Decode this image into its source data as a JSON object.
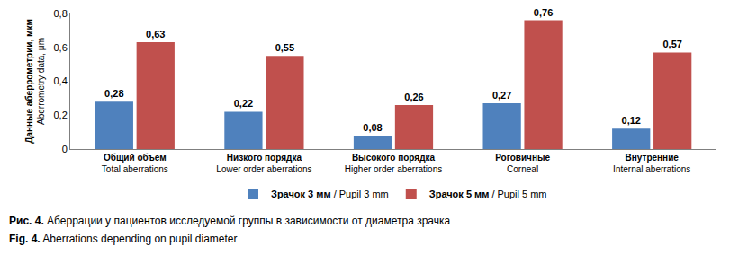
{
  "chart_data": {
    "type": "bar",
    "title": "Рис. 4. Аберрации у пациентов исследуемой группы в зависимости от диаметра зрачка",
    "subtitle": "Fig. 4. Aberrations depending on pupil diameter",
    "y_label": "Данные аберрометрии, мкм\nAberrometry data, μm",
    "categories": [
      "Общий объем\nTotal aberrations",
      "Низкого порядка\nLower order aberrations",
      "Высокого порядка\nHigher order aberrations",
      "Роговичные\nCorneal",
      "Внутренние\nInternal aberrations"
    ],
    "series": [
      {
        "name": "Зрачок 3 мм / Pupil 3 mm",
        "color": "#4f81bd",
        "values": [
          0.28,
          0.22,
          0.08,
          0.27,
          0.12
        ],
        "value_labels": [
          "0,28",
          "0,22",
          "0,08",
          "0,27",
          "0,12"
        ]
      },
      {
        "name": "Зрачок 5 мм / Pupil 5 mm",
        "color": "#c0504d",
        "values": [
          0.63,
          0.55,
          0.26,
          0.76,
          0.57
        ],
        "value_labels": [
          "0,63",
          "0,55",
          "0,26",
          "0,76",
          "0,57"
        ]
      }
    ],
    "ylim": [
      0,
      0.8
    ],
    "yticks": [
      0,
      {
        "value": 0.2,
        "label": "0,2"
      },
      {
        "value": 0.4,
        "label": "0,4"
      },
      {
        "value": 0.6,
        "label": "0,6"
      },
      {
        "value": 0.8,
        "label": "0,8"
      }
    ],
    "grid": false,
    "data_labels": true,
    "legend": "bottom"
  }
}
